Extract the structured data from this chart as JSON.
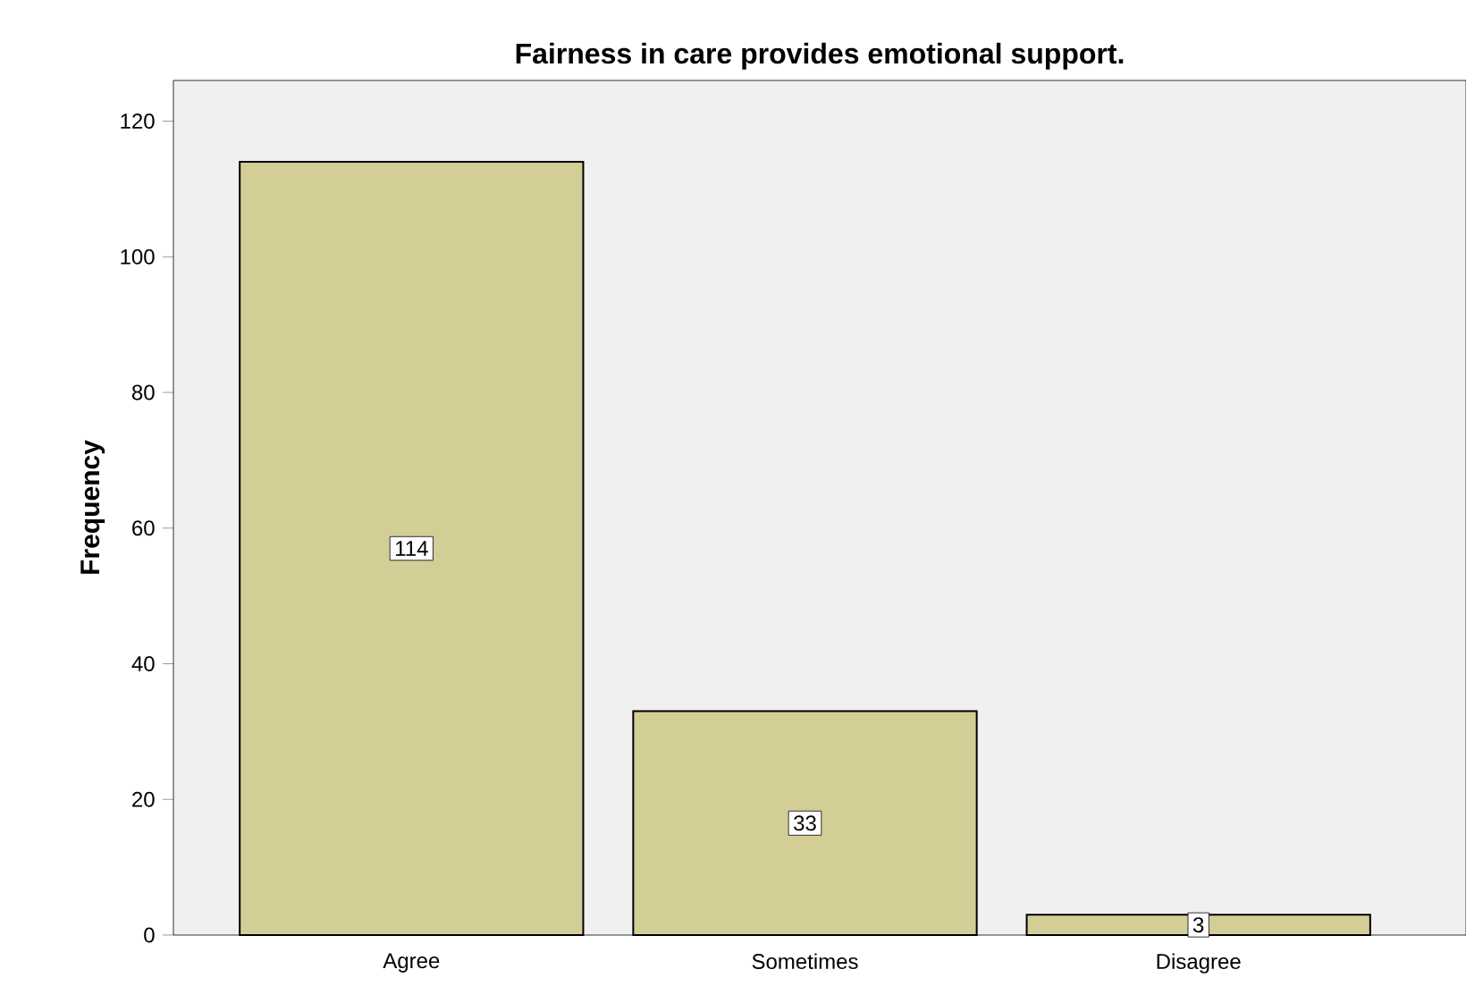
{
  "chart_data": {
    "type": "bar",
    "title": "Fairness in care provides emotional support.",
    "ylabel": "Frequency",
    "categories": [
      "Agree",
      "Sometimes",
      "Disagree"
    ],
    "values": [
      114,
      33,
      3
    ],
    "color": "#d3ce96",
    "ylim": [
      0,
      126
    ],
    "yticks": [
      0,
      20,
      40,
      60,
      80,
      100,
      120
    ],
    "data_labels": true,
    "grid": false
  }
}
